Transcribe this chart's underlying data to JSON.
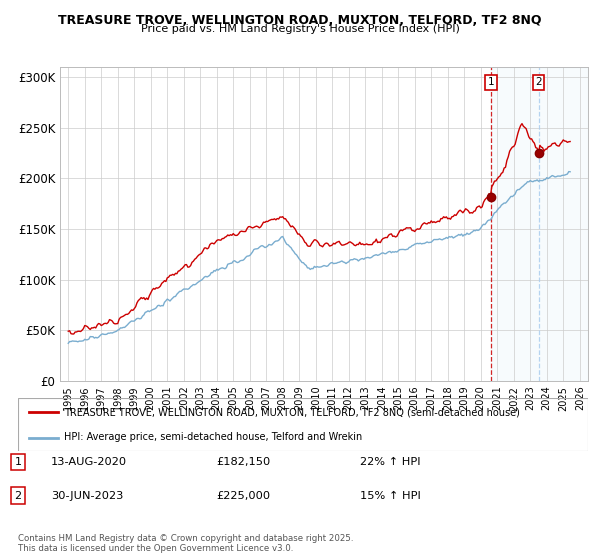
{
  "title_line1": "TREASURE TROVE, WELLINGTON ROAD, MUXTON, TELFORD, TF2 8NQ",
  "title_line2": "Price paid vs. HM Land Registry's House Price Index (HPI)",
  "yticks": [
    0,
    50000,
    100000,
    150000,
    200000,
    250000,
    300000
  ],
  "ytick_labels": [
    "£0",
    "£50K",
    "£100K",
    "£150K",
    "£200K",
    "£250K",
    "£300K"
  ],
  "xlim_start": 1994.5,
  "xlim_end": 2026.5,
  "ylim": [
    0,
    310000
  ],
  "sale1_date": "13-AUG-2020",
  "sale1_price": 182150,
  "sale1_pct": "22% ↑ HPI",
  "sale2_date": "30-JUN-2023",
  "sale2_price": 225000,
  "sale2_pct": "15% ↑ HPI",
  "sale1_year": 2020.62,
  "sale2_year": 2023.5,
  "legend_label1": "TREASURE TROVE, WELLINGTON ROAD, MUXTON, TELFORD, TF2 8NQ (semi-detached house)",
  "legend_label2": "HPI: Average price, semi-detached house, Telford and Wrekin",
  "footer": "Contains HM Land Registry data © Crown copyright and database right 2025.\nThis data is licensed under the Open Government Licence v3.0.",
  "line_color_red": "#cc0000",
  "line_color_blue": "#7aadcf",
  "dashed_line_color": "#cc0000",
  "shaded_color": "#d8eaf7",
  "grid_color": "#cccccc"
}
